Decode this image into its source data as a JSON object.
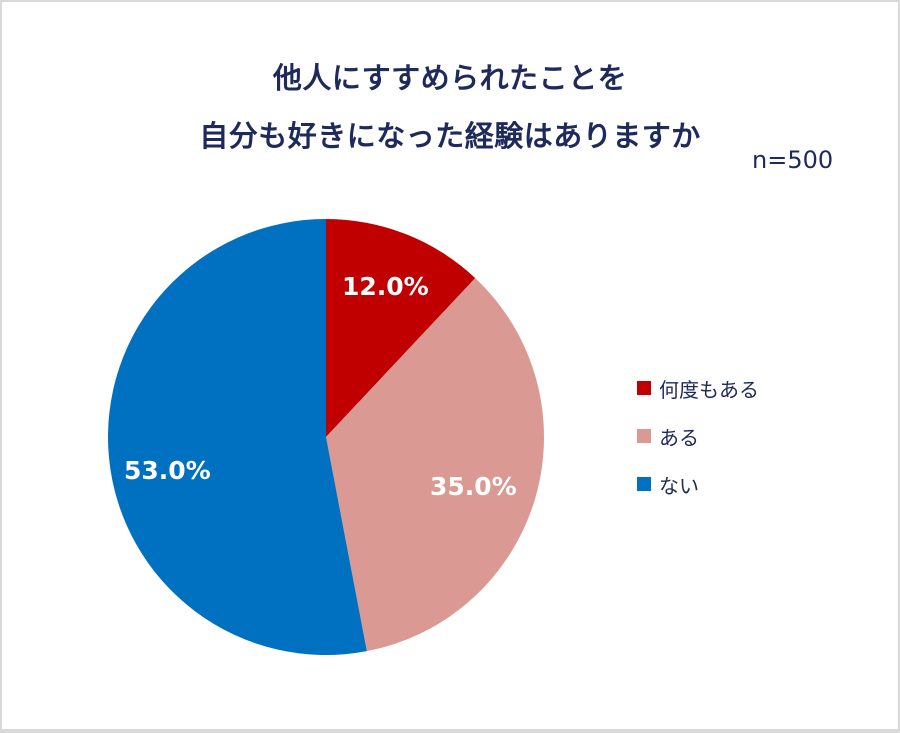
{
  "title": {
    "line1": "他人にすすめられたことを",
    "line2": "自分も好きになった経験はありますか"
  },
  "sample_size": "n=500",
  "legend": [
    {
      "label": "何度もある",
      "color": "#C00000"
    },
    {
      "label": "ある",
      "color": "#DA9A93"
    },
    {
      "label": "ない",
      "color": "#0070C0"
    }
  ],
  "labels": {
    "s0": "12.0%",
    "s1": "35.0%",
    "s2": "53.0%"
  },
  "chart_data": {
    "type": "pie",
    "title": "他人にすすめられたことを自分も好きになった経験はありますか",
    "subtitle": "n=500",
    "categories": [
      "何度もある",
      "ある",
      "ない"
    ],
    "values": [
      12.0,
      35.0,
      53.0
    ],
    "unit": "%",
    "colors": [
      "#C00000",
      "#DA9A93",
      "#0070C0"
    ],
    "start_angle": "12 o'clock, clockwise",
    "legend_position": "right"
  }
}
